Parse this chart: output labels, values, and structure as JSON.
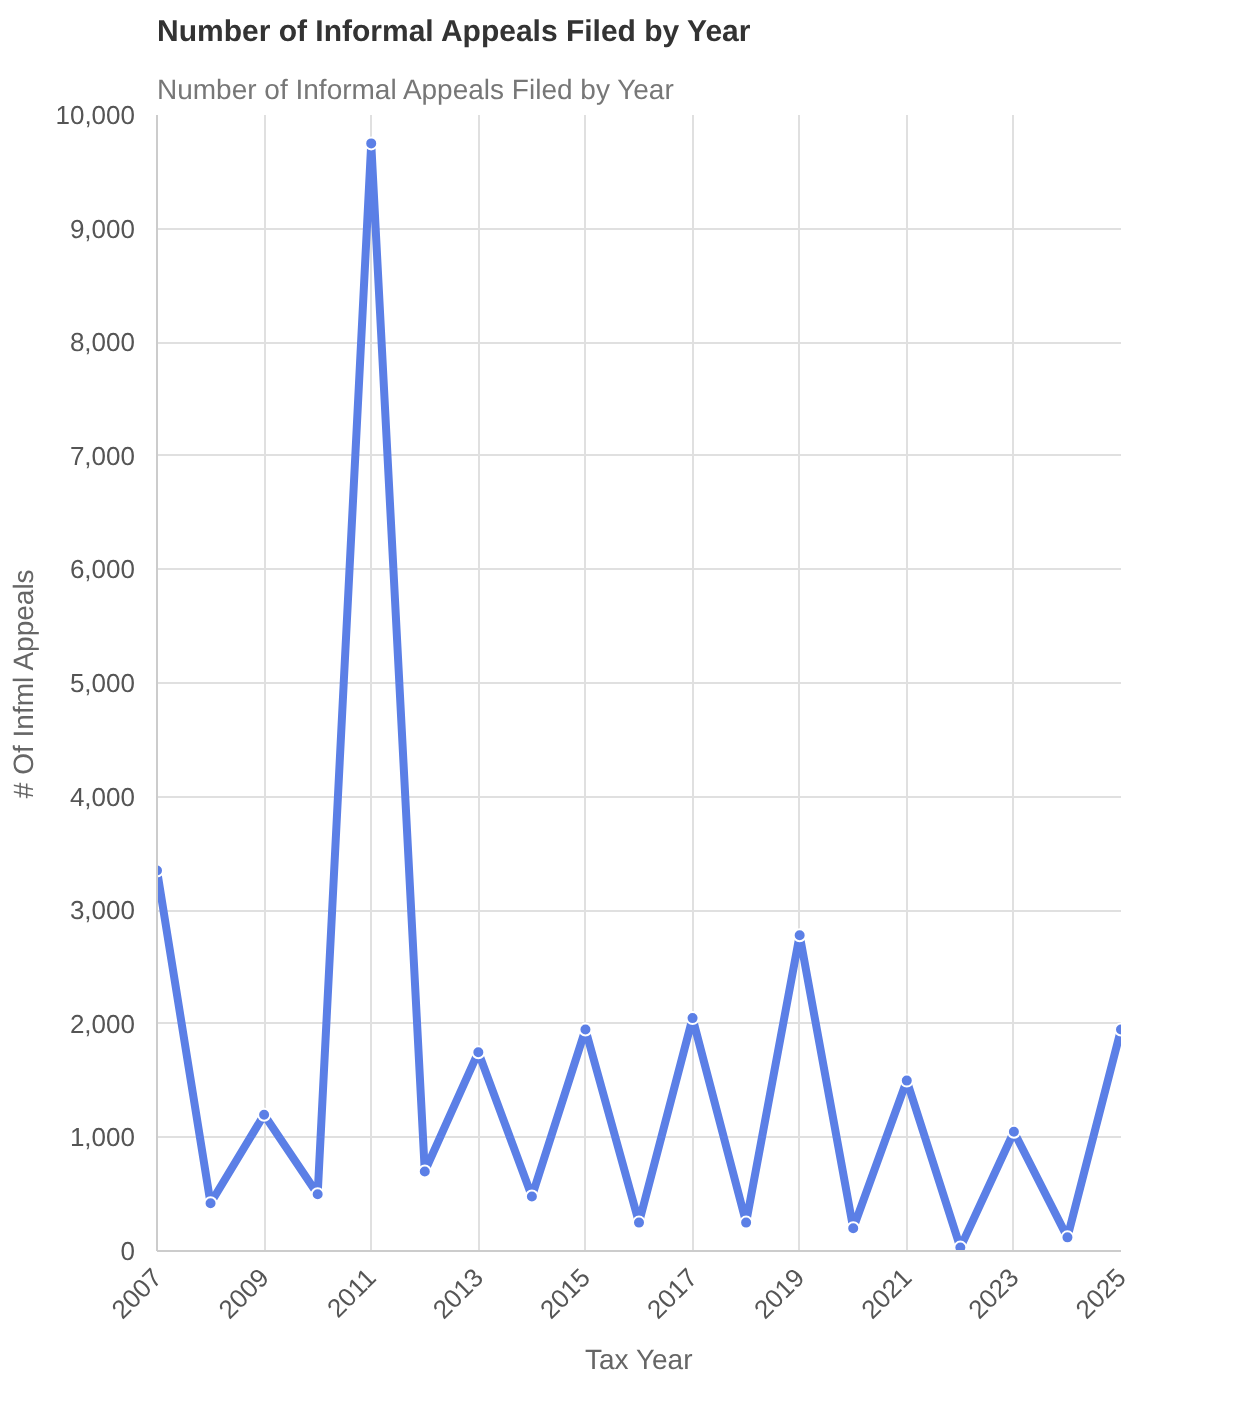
{
  "chart_data": {
    "type": "line",
    "title": "Number of Informal Appeals Filed by Year",
    "subtitle": "Number of Informal Appeals Filed by Year",
    "xlabel": "Tax Year",
    "ylabel": "# Of Infml Appeals",
    "x": [
      2007,
      2008,
      2009,
      2010,
      2011,
      2012,
      2013,
      2014,
      2015,
      2016,
      2017,
      2018,
      2019,
      2020,
      2021,
      2022,
      2023,
      2024,
      2025
    ],
    "series": [
      {
        "color": "#5b7fe6",
        "values": [
          3350,
          420,
          1200,
          500,
          9750,
          700,
          1750,
          480,
          1950,
          250,
          2050,
          250,
          2780,
          200,
          1500,
          30,
          1050,
          120,
          1950
        ]
      }
    ],
    "xlim": [
      2007,
      2025
    ],
    "xticks": [
      2007,
      2009,
      2011,
      2013,
      2015,
      2017,
      2019,
      2021,
      2023,
      2025
    ],
    "ylim": [
      0,
      10000
    ],
    "yticks": [
      {
        "value": 0,
        "label": "0"
      },
      {
        "value": 1000,
        "label": "1,000"
      },
      {
        "value": 2000,
        "label": "2,000"
      },
      {
        "value": 3000,
        "label": "3,000"
      },
      {
        "value": 4000,
        "label": "4,000"
      },
      {
        "value": 5000,
        "label": "5,000"
      },
      {
        "value": 6000,
        "label": "6,000"
      },
      {
        "value": 7000,
        "label": "7,000"
      },
      {
        "value": 8000,
        "label": "8,000"
      },
      {
        "value": 9000,
        "label": "9,000"
      },
      {
        "value": 10000,
        "label": "10,000"
      }
    ],
    "grid": true,
    "marker": "circle",
    "line_style": "solid"
  }
}
